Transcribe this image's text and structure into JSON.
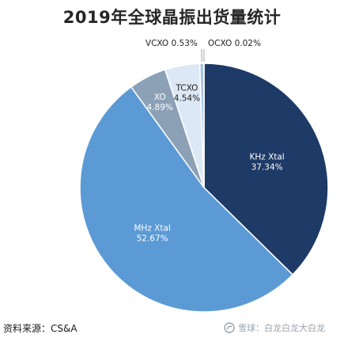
{
  "title": "2019年全球晶振出货量统计",
  "chart_data": {
    "type": "pie",
    "title": "2019年全球晶振出货量统计",
    "unit": "%",
    "slices": [
      {
        "label": "KHz Xtal",
        "value": 37.34,
        "value_text": "37.34%",
        "color": "#1e3a66",
        "text_color": "#ffffff",
        "label_style": "inside"
      },
      {
        "label": "MHz Xtal",
        "value": 52.67,
        "value_text": "52.67%",
        "color": "#5b9ad5",
        "text_color": "#ffffff",
        "label_style": "inside"
      },
      {
        "label": "XO",
        "value": 4.89,
        "value_text": "4.89%",
        "color": "#8ca0b6",
        "text_color": "#ffffff",
        "label_style": "inside"
      },
      {
        "label": "TCXO",
        "value": 4.54,
        "value_text": "4.54%",
        "color": "#dce8f5",
        "text_color": "#222222",
        "label_style": "inside"
      },
      {
        "label": "VCXO",
        "value": 0.53,
        "value_text": "0.53%",
        "color": "#a9c2e0",
        "text_color": "#222222",
        "label_style": "outside"
      },
      {
        "label": "OCXO",
        "value": 0.02,
        "value_text": "0.02%",
        "color": "#b0b7c0",
        "text_color": "#222222",
        "label_style": "outside"
      }
    ]
  },
  "source_note": "资料来源：CS&A",
  "watermark": "雪球：白龙白龙大白龙"
}
